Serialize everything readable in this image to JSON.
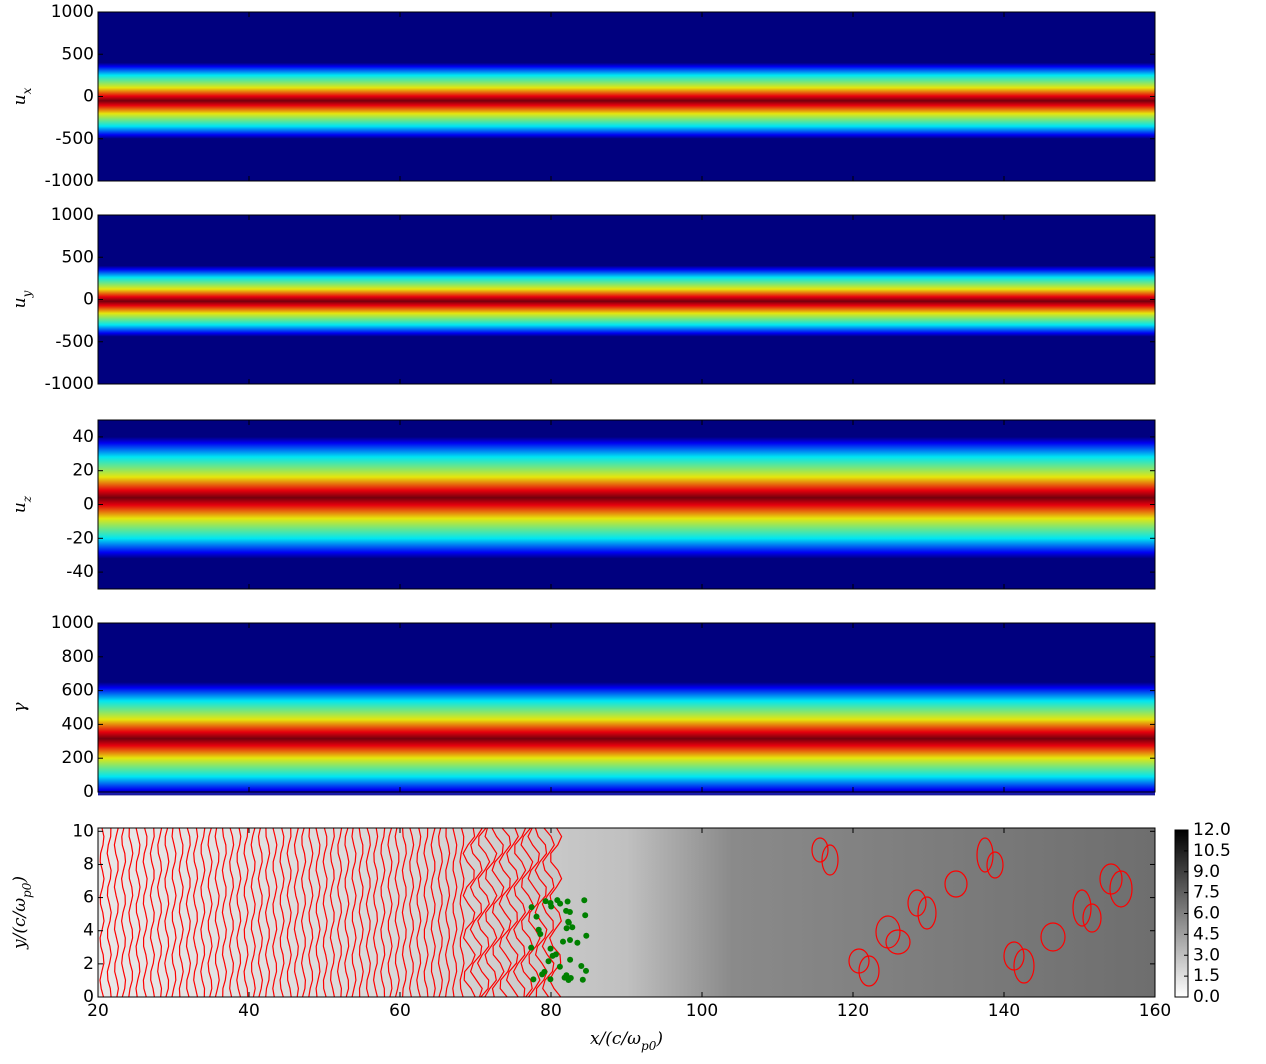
{
  "chart_data": [
    {
      "type": "heatmap",
      "colormap": "jet",
      "ylabel": [
        {
          "text": "u"
        },
        {
          "text": "x",
          "sub": true
        }
      ],
      "xlim": [
        20,
        160
      ],
      "xticks": [
        20,
        40,
        60,
        80,
        100,
        120,
        140,
        160
      ],
      "xticklabels": false,
      "ylim": [
        -1000,
        1000
      ],
      "yticks": [
        -1000,
        -500,
        0,
        500,
        1000
      ]
    },
    {
      "type": "heatmap",
      "colormap": "jet",
      "ylabel": [
        {
          "text": "u"
        },
        {
          "text": "y",
          "sub": true
        }
      ],
      "xlim": [
        20,
        160
      ],
      "xticks": [
        20,
        40,
        60,
        80,
        100,
        120,
        140,
        160
      ],
      "xticklabels": false,
      "ylim": [
        -1000,
        1000
      ],
      "yticks": [
        -1000,
        -500,
        0,
        500,
        1000
      ]
    },
    {
      "type": "heatmap",
      "colormap": "jet",
      "ylabel": [
        {
          "text": "u"
        },
        {
          "text": "z",
          "sub": true
        }
      ],
      "xlim": [
        20,
        160
      ],
      "xticks": [
        20,
        40,
        60,
        80,
        100,
        120,
        140,
        160
      ],
      "xticklabels": false,
      "ylim": [
        -50,
        50
      ],
      "yticks": [
        -40,
        -20,
        0,
        20,
        40
      ]
    },
    {
      "type": "heatmap",
      "colormap": "jet",
      "ylabel": [
        {
          "text": "γ"
        }
      ],
      "xlim": [
        20,
        160
      ],
      "xticks": [
        20,
        40,
        60,
        80,
        100,
        120,
        140,
        160
      ],
      "xticklabels": false,
      "ylim": [
        0,
        1000
      ],
      "yticks": [
        0,
        200,
        400,
        600,
        800,
        1000
      ]
    },
    {
      "type": "heatmap",
      "colormap": "gray",
      "contour_color": "#ff0000",
      "point_color": "#008000",
      "ylabel": [
        {
          "text": "y/(c/ω"
        },
        {
          "text": "p0",
          "sub": true
        },
        {
          "text": ")"
        }
      ],
      "xlabel": [
        {
          "text": "x/(c/ω"
        },
        {
          "text": "p0",
          "sub": true
        },
        {
          "text": ")"
        }
      ],
      "xlim": [
        20,
        160
      ],
      "xticks": [
        20,
        40,
        60,
        80,
        100,
        120,
        140,
        160
      ],
      "xticklabels": true,
      "ylim": [
        0,
        10.2
      ],
      "yticks": [
        0,
        2,
        4,
        6,
        8,
        10
      ],
      "colorbar": {
        "lim": [
          0,
          12
        ],
        "ticks": [
          {
            "value": 0,
            "label": "0.0"
          },
          {
            "value": 1.5,
            "label": "1.5"
          },
          {
            "value": 3,
            "label": "3.0"
          },
          {
            "value": 4.5,
            "label": "4.5"
          },
          {
            "value": 6,
            "label": "6.0"
          },
          {
            "value": 7.5,
            "label": "7.5"
          },
          {
            "value": 9,
            "label": "9.0"
          },
          {
            "value": 10.5,
            "label": "10.5"
          },
          {
            "value": 12,
            "label": "12.0"
          }
        ]
      }
    }
  ]
}
